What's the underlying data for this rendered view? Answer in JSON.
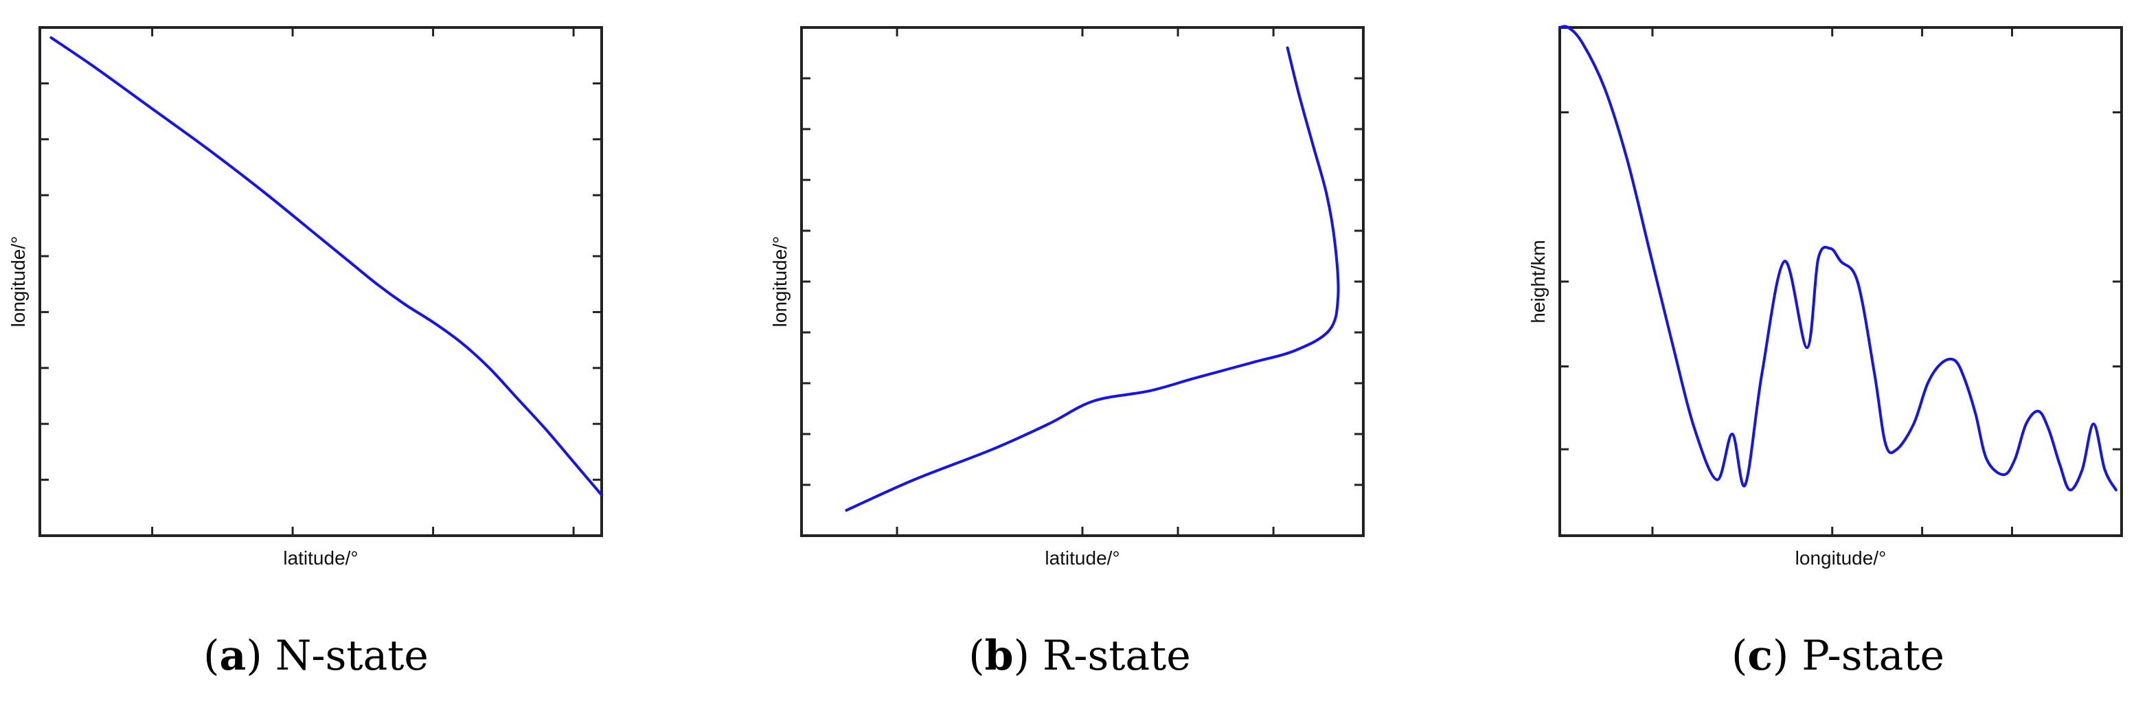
{
  "line_color": "#1414f0",
  "chart_data": [
    {
      "type": "line",
      "panel_letter": "a",
      "caption": "N-state",
      "xlabel": "latitude/°",
      "ylabel": "longitude/°",
      "xlim": [
        0,
        100
      ],
      "ylim": [
        0,
        100
      ],
      "x_ticks": [
        20,
        45,
        70,
        95
      ],
      "y_ticks": [
        11,
        22,
        33,
        44,
        55,
        67,
        78,
        89
      ],
      "grid": false,
      "series": [
        {
          "x": [
            2,
            10,
            20,
            30,
            40,
            50,
            55,
            60,
            65,
            70,
            75,
            80,
            85,
            90,
            95,
            100
          ],
          "y": [
            98,
            92,
            84,
            76,
            67.5,
            58.5,
            54,
            49.5,
            45.5,
            42,
            38,
            33,
            27,
            21,
            14.5,
            8
          ]
        }
      ]
    },
    {
      "type": "line",
      "panel_letter": "b",
      "caption": "R-state",
      "xlabel": "latitude/°",
      "ylabel": "longitude/°",
      "xlim": [
        0,
        100
      ],
      "ylim": [
        0,
        100
      ],
      "x_ticks": [
        17,
        50,
        67,
        84
      ],
      "y_ticks": [
        10,
        20,
        30,
        40,
        50,
        60,
        70,
        80,
        90
      ],
      "grid": false,
      "series": [
        {
          "x": [
            8,
            20,
            34,
            44,
            52,
            62,
            70,
            80,
            88,
            94,
            95.5,
            95,
            93.5,
            91,
            88.5,
            86.5
          ],
          "y": [
            5,
            11,
            17,
            22,
            26.5,
            28.5,
            31,
            34,
            36.5,
            40.5,
            47,
            57,
            67,
            77,
            87,
            96
          ]
        }
      ]
    },
    {
      "type": "line",
      "panel_letter": "c",
      "caption": "P-state",
      "xlabel": "longitude/°",
      "ylabel": "height/km",
      "xlim": [
        0,
        100
      ],
      "ylim": [
        0,
        100
      ],
      "x_ticks": [
        16.5,
        48.5,
        64.5,
        80.5
      ],
      "y_ticks": [
        17,
        33.3,
        50,
        83.3
      ],
      "grid": false,
      "series": [
        {
          "x": [
            0,
            1.5,
            4,
            8,
            12,
            16,
            20,
            24,
            28,
            30.7,
            33,
            36,
            40,
            44,
            46,
            48.2,
            50,
            53,
            56,
            58,
            60,
            63,
            65.5,
            68,
            70.3,
            72,
            74,
            76,
            79,
            81,
            83,
            85.2,
            87,
            89,
            90.8,
            93,
            95,
            97,
            99
          ],
          "y": [
            100,
            100,
            97,
            88,
            74,
            56,
            38,
            21,
            11,
            20,
            10,
            32,
            54,
            37,
            54.5,
            56.5,
            54,
            50,
            32,
            18,
            17,
            22,
            30,
            34,
            34.5,
            31,
            24,
            15,
            12,
            15,
            22,
            24.5,
            21,
            14,
            9,
            13,
            22,
            13,
            9
          ]
        }
      ]
    }
  ]
}
